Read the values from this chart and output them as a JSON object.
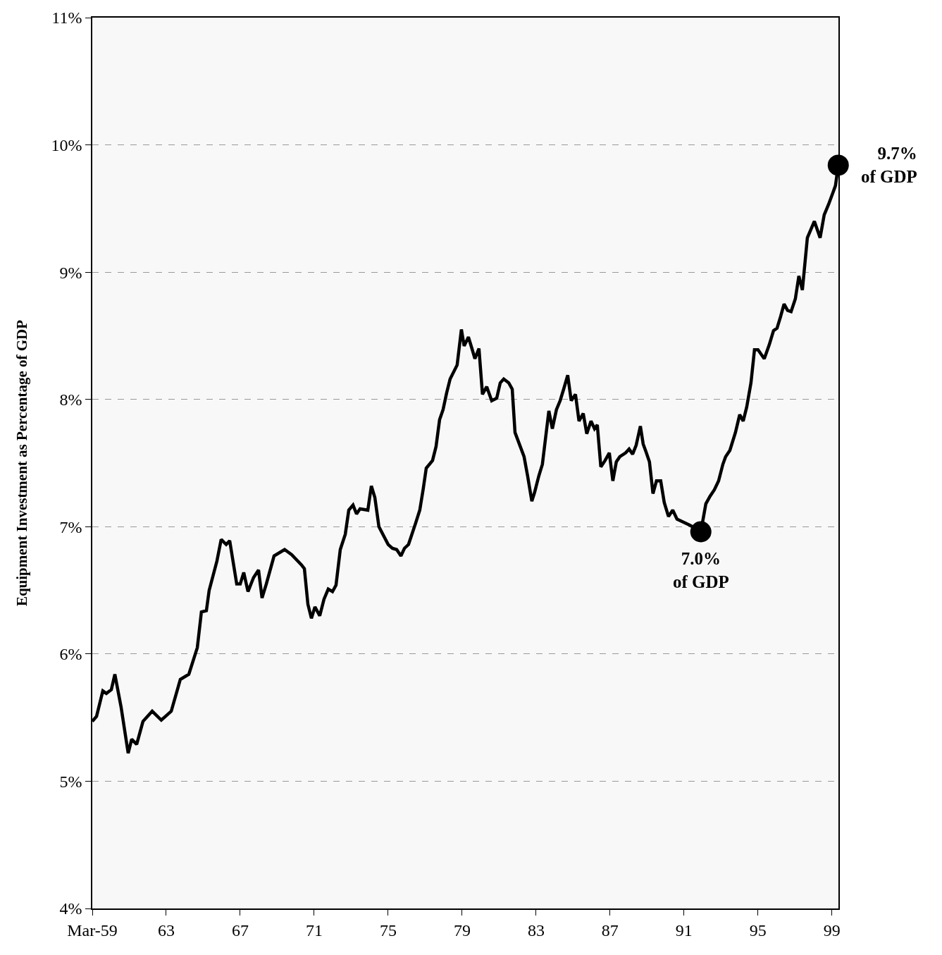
{
  "chart_data": {
    "type": "line",
    "ylabel": "Equipment Investment as Percentage of GDP",
    "xlim": [
      1959,
      1999.35
    ],
    "ylim": [
      4,
      11
    ],
    "xticks": [
      {
        "value": 1959,
        "label": "Mar-59"
      },
      {
        "value": 1963,
        "label": "63"
      },
      {
        "value": 1967,
        "label": "67"
      },
      {
        "value": 1971,
        "label": "71"
      },
      {
        "value": 1975,
        "label": "75"
      },
      {
        "value": 1979,
        "label": "79"
      },
      {
        "value": 1983,
        "label": "83"
      },
      {
        "value": 1987,
        "label": "87"
      },
      {
        "value": 1991,
        "label": "91"
      },
      {
        "value": 1995,
        "label": "95"
      },
      {
        "value": 1999,
        "label": "99"
      }
    ],
    "yticks": [
      {
        "value": 4,
        "label": "4%"
      },
      {
        "value": 5,
        "label": "5%"
      },
      {
        "value": 6,
        "label": "6%"
      },
      {
        "value": 7,
        "label": "7%"
      },
      {
        "value": 8,
        "label": "8%"
      },
      {
        "value": 9,
        "label": "9%"
      },
      {
        "value": 10,
        "label": "10%"
      },
      {
        "value": 11,
        "label": "11%"
      }
    ],
    "grid": "y",
    "line_style": "solid",
    "series": [
      {
        "color": "#000000",
        "x": [
          1959.0,
          1959.23,
          1959.57,
          1959.76,
          1960.03,
          1960.22,
          1960.56,
          1960.94,
          1961.13,
          1961.4,
          1961.74,
          1962.24,
          1962.73,
          1963.27,
          1963.76,
          1964.22,
          1964.68,
          1964.9,
          1965.17,
          1965.32,
          1965.74,
          1965.97,
          1966.24,
          1966.43,
          1966.81,
          1967.0,
          1967.19,
          1967.42,
          1967.72,
          1967.99,
          1968.18,
          1968.41,
          1968.83,
          1969.4,
          1969.78,
          1970.31,
          1970.47,
          1970.66,
          1970.85,
          1971.04,
          1971.3,
          1971.53,
          1971.76,
          1971.99,
          1972.18,
          1972.41,
          1972.68,
          1972.87,
          1973.1,
          1973.29,
          1973.48,
          1973.9,
          1974.09,
          1974.28,
          1974.5,
          1975.0,
          1975.23,
          1975.46,
          1975.69,
          1975.88,
          1976.1,
          1976.49,
          1976.71,
          1976.9,
          1977.06,
          1977.4,
          1977.59,
          1977.78,
          1977.97,
          1978.16,
          1978.35,
          1978.73,
          1978.96,
          1979.11,
          1979.34,
          1979.53,
          1979.69,
          1979.91,
          1980.1,
          1980.33,
          1980.6,
          1980.87,
          1981.06,
          1981.25,
          1981.52,
          1981.71,
          1981.86,
          1982.35,
          1982.54,
          1982.77,
          1982.92,
          1983.15,
          1983.34,
          1983.69,
          1983.88,
          1984.1,
          1984.3,
          1984.49,
          1984.71,
          1984.9,
          1985.13,
          1985.32,
          1985.55,
          1985.74,
          1985.97,
          1986.16,
          1986.31,
          1986.5,
          1986.73,
          1986.96,
          1987.15,
          1987.34,
          1987.53,
          1987.84,
          1988.03,
          1988.22,
          1988.41,
          1988.64,
          1988.79,
          1988.94,
          1989.13,
          1989.32,
          1989.51,
          1989.74,
          1989.93,
          1990.16,
          1990.39,
          1990.62,
          1991.34,
          1991.91,
          1992.18,
          1992.41,
          1992.64,
          1992.87,
          1993.1,
          1993.25,
          1993.48,
          1993.78,
          1994.01,
          1994.2,
          1994.39,
          1994.62,
          1994.81,
          1995.0,
          1995.34,
          1995.61,
          1995.84,
          1996.03,
          1996.22,
          1996.41,
          1996.6,
          1996.79,
          1997.02,
          1997.21,
          1997.4,
          1997.67,
          1998.05,
          1998.36,
          1998.58,
          1998.81,
          1999.04,
          1999.19,
          1999.34
        ],
        "values": [
          5.47,
          5.51,
          5.71,
          5.69,
          5.72,
          5.84,
          5.58,
          5.22,
          5.33,
          5.29,
          5.47,
          5.55,
          5.48,
          5.55,
          5.8,
          5.84,
          6.05,
          6.33,
          6.34,
          6.5,
          6.73,
          6.9,
          6.86,
          6.89,
          6.55,
          6.55,
          6.64,
          6.49,
          6.6,
          6.66,
          6.44,
          6.55,
          6.77,
          6.82,
          6.78,
          6.7,
          6.67,
          6.39,
          6.28,
          6.37,
          6.3,
          6.43,
          6.51,
          6.49,
          6.54,
          6.82,
          6.94,
          7.13,
          7.17,
          7.1,
          7.14,
          7.13,
          7.32,
          7.23,
          7.0,
          6.86,
          6.83,
          6.82,
          6.77,
          6.83,
          6.86,
          7.03,
          7.13,
          7.3,
          7.46,
          7.52,
          7.63,
          7.84,
          7.92,
          8.05,
          8.16,
          8.27,
          8.55,
          8.42,
          8.49,
          8.4,
          8.32,
          8.4,
          8.04,
          8.1,
          7.99,
          8.01,
          8.13,
          8.16,
          8.13,
          8.08,
          7.74,
          7.55,
          7.4,
          7.2,
          7.27,
          7.4,
          7.49,
          7.91,
          7.77,
          7.92,
          7.99,
          8.08,
          8.19,
          7.99,
          8.04,
          7.83,
          7.89,
          7.73,
          7.83,
          7.77,
          7.8,
          7.47,
          7.52,
          7.58,
          7.36,
          7.51,
          7.55,
          7.58,
          7.61,
          7.57,
          7.64,
          7.79,
          7.65,
          7.59,
          7.51,
          7.26,
          7.36,
          7.36,
          7.19,
          7.08,
          7.13,
          7.06,
          7.01,
          6.96,
          7.18,
          7.24,
          7.29,
          7.36,
          7.49,
          7.55,
          7.6,
          7.74,
          7.88,
          7.83,
          7.94,
          8.13,
          8.39,
          8.39,
          8.32,
          8.43,
          8.54,
          8.56,
          8.65,
          8.75,
          8.7,
          8.69,
          8.79,
          8.97,
          8.86,
          9.27,
          9.4,
          9.27,
          9.45,
          9.53,
          9.62,
          9.68,
          9.84
        ]
      },
      {
        "type": "scatter",
        "color": "#000000",
        "marker": "circle",
        "x": [
          1991.91,
          1999.34
        ],
        "values": [
          6.96,
          9.84
        ]
      }
    ],
    "annotations": [
      {
        "text": "7.0%\nof GDP",
        "x": 1991.91,
        "y": 6.96
      },
      {
        "text": "9.7%\nof GDP",
        "x": 1999.34,
        "y": 9.84
      }
    ]
  }
}
